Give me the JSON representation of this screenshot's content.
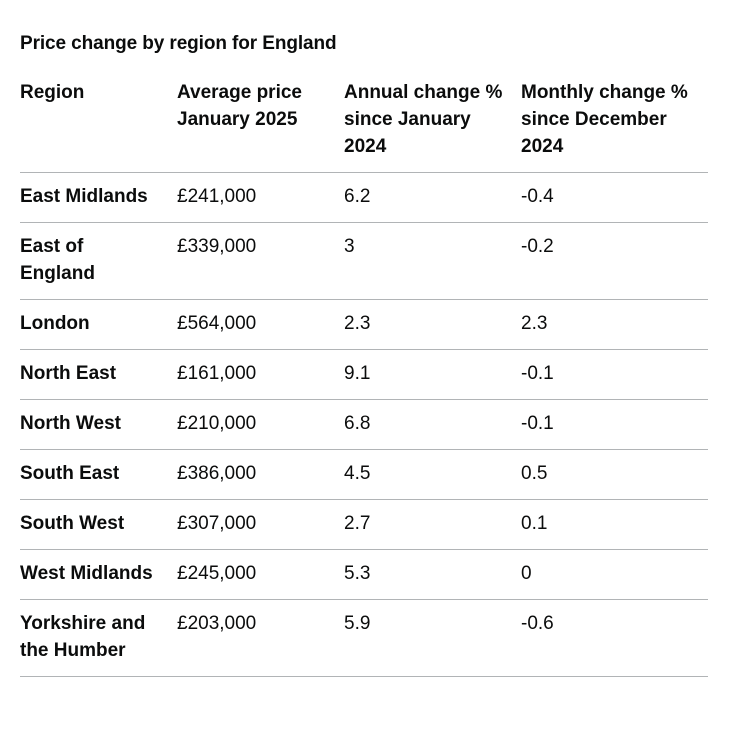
{
  "caption": "Price change by region for England",
  "columns": [
    "Region",
    "Average price January 2025",
    "Annual change % since January 2024",
    "Monthly change % since December 2024"
  ],
  "rows": [
    {
      "region": "East Midlands",
      "price": "£241,000",
      "annual": "6.2",
      "monthly": "-0.4"
    },
    {
      "region": "East of England",
      "price": "£339,000",
      "annual": "3",
      "monthly": "-0.2"
    },
    {
      "region": "London",
      "price": "£564,000",
      "annual": "2.3",
      "monthly": "2.3"
    },
    {
      "region": "North East",
      "price": "£161,000",
      "annual": "9.1",
      "monthly": "-0.1"
    },
    {
      "region": "North West",
      "price": "£210,000",
      "annual": "6.8",
      "monthly": "-0.1"
    },
    {
      "region": "South East",
      "price": "£386,000",
      "annual": "4.5",
      "monthly": "0.5"
    },
    {
      "region": "South West",
      "price": "£307,000",
      "annual": "2.7",
      "monthly": "0.1"
    },
    {
      "region": "West Midlands",
      "price": "£245,000",
      "annual": "5.3",
      "monthly": "0"
    },
    {
      "region": "Yorkshire and the Humber",
      "price": "£203,000",
      "annual": "5.9",
      "monthly": "-0.6"
    }
  ]
}
